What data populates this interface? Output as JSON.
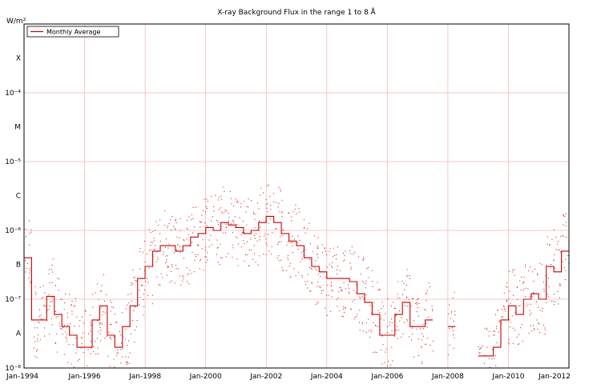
{
  "chart_data": {
    "type": "line",
    "title": "X-ray Background Flux in the range  1 to 8  Å",
    "ylabel": "W/m²",
    "xlabel": "",
    "y_scale": "log",
    "ylim": [
      1e-08,
      0.001
    ],
    "xlim": [
      "Jan-1994",
      "Jan-2012"
    ],
    "grid": true,
    "legend_placement": "top-left",
    "x_tick_labels": [
      "Jan-1994",
      "Jan-1996",
      "Jan-1998",
      "Jan-2000",
      "Jan-2002",
      "Jan-2004",
      "Jan-2006",
      "Jan-2008",
      "Jan-2010",
      "Jan-2012"
    ],
    "y_tick_labels": [
      {
        "label": "10⁻⁸",
        "value": 1e-08
      },
      {
        "label": "A",
        "value": 3.2e-08
      },
      {
        "label": "10⁻⁷",
        "value": 1e-07
      },
      {
        "label": "B",
        "value": 3.2e-07
      },
      {
        "label": "10⁻⁶",
        "value": 1e-06
      },
      {
        "label": "C",
        "value": 3.2e-06
      },
      {
        "label": "10⁻⁵",
        "value": 1e-05
      },
      {
        "label": "M",
        "value": 3.2e-05
      },
      {
        "label": "10⁻⁴",
        "value": 0.0001
      },
      {
        "label": "X",
        "value": 0.00032
      }
    ],
    "series": [
      {
        "name": "Monthly Average",
        "color": "#cc0000",
        "style": "step",
        "x": [
          1994.0,
          1994.25,
          1994.5,
          1994.75,
          1995.0,
          1995.25,
          1995.5,
          1995.75,
          1996.0,
          1996.25,
          1996.5,
          1996.75,
          1997.0,
          1997.25,
          1997.5,
          1997.75,
          1998.0,
          1998.25,
          1998.5,
          1998.75,
          1999.0,
          1999.25,
          1999.5,
          1999.75,
          2000.0,
          2000.25,
          2000.5,
          2000.75,
          2001.0,
          2001.25,
          2001.5,
          2001.75,
          2002.0,
          2002.25,
          2002.5,
          2002.75,
          2003.0,
          2003.25,
          2003.5,
          2003.75,
          2004.0,
          2004.25,
          2004.5,
          2004.75,
          2005.0,
          2005.25,
          2005.5,
          2005.75,
          2006.0,
          2006.25,
          2006.5,
          2006.75,
          2007.0,
          2007.25,
          2007.5,
          2007.75,
          2008.0,
          2008.25,
          2008.5,
          2008.75,
          2009.0,
          2009.25,
          2009.5,
          2009.75,
          2010.0,
          2010.25,
          2010.5,
          2010.75,
          2011.0,
          2011.25,
          2011.5,
          2011.75
        ],
        "y": [
          4e-07,
          5e-08,
          5e-08,
          1.1e-07,
          6e-08,
          4e-08,
          3e-08,
          2e-08,
          2e-08,
          5e-08,
          8e-08,
          3e-08,
          2e-08,
          4e-08,
          8e-08,
          2e-07,
          3e-07,
          5e-07,
          6e-07,
          6e-07,
          5e-07,
          6e-07,
          8e-07,
          9e-07,
          1.1e-06,
          1e-06,
          1.3e-06,
          1.2e-06,
          1.1e-06,
          9e-07,
          1e-06,
          1.3e-06,
          1.6e-06,
          1.3e-06,
          9e-07,
          7e-07,
          6e-07,
          4e-07,
          3e-07,
          2.5e-07,
          2e-07,
          2e-07,
          2e-07,
          1.8e-07,
          1.2e-07,
          9e-08,
          6e-08,
          3e-08,
          3e-08,
          6e-08,
          9e-08,
          4e-08,
          4e-08,
          5e-08,
          null,
          null,
          4e-08,
          null,
          null,
          null,
          1.5e-08,
          1.5e-08,
          2e-08,
          5e-08,
          8e-08,
          6e-08,
          1e-07,
          1.2e-07,
          1e-07,
          3e-07,
          2.5e-07,
          5e-07
        ]
      }
    ]
  }
}
